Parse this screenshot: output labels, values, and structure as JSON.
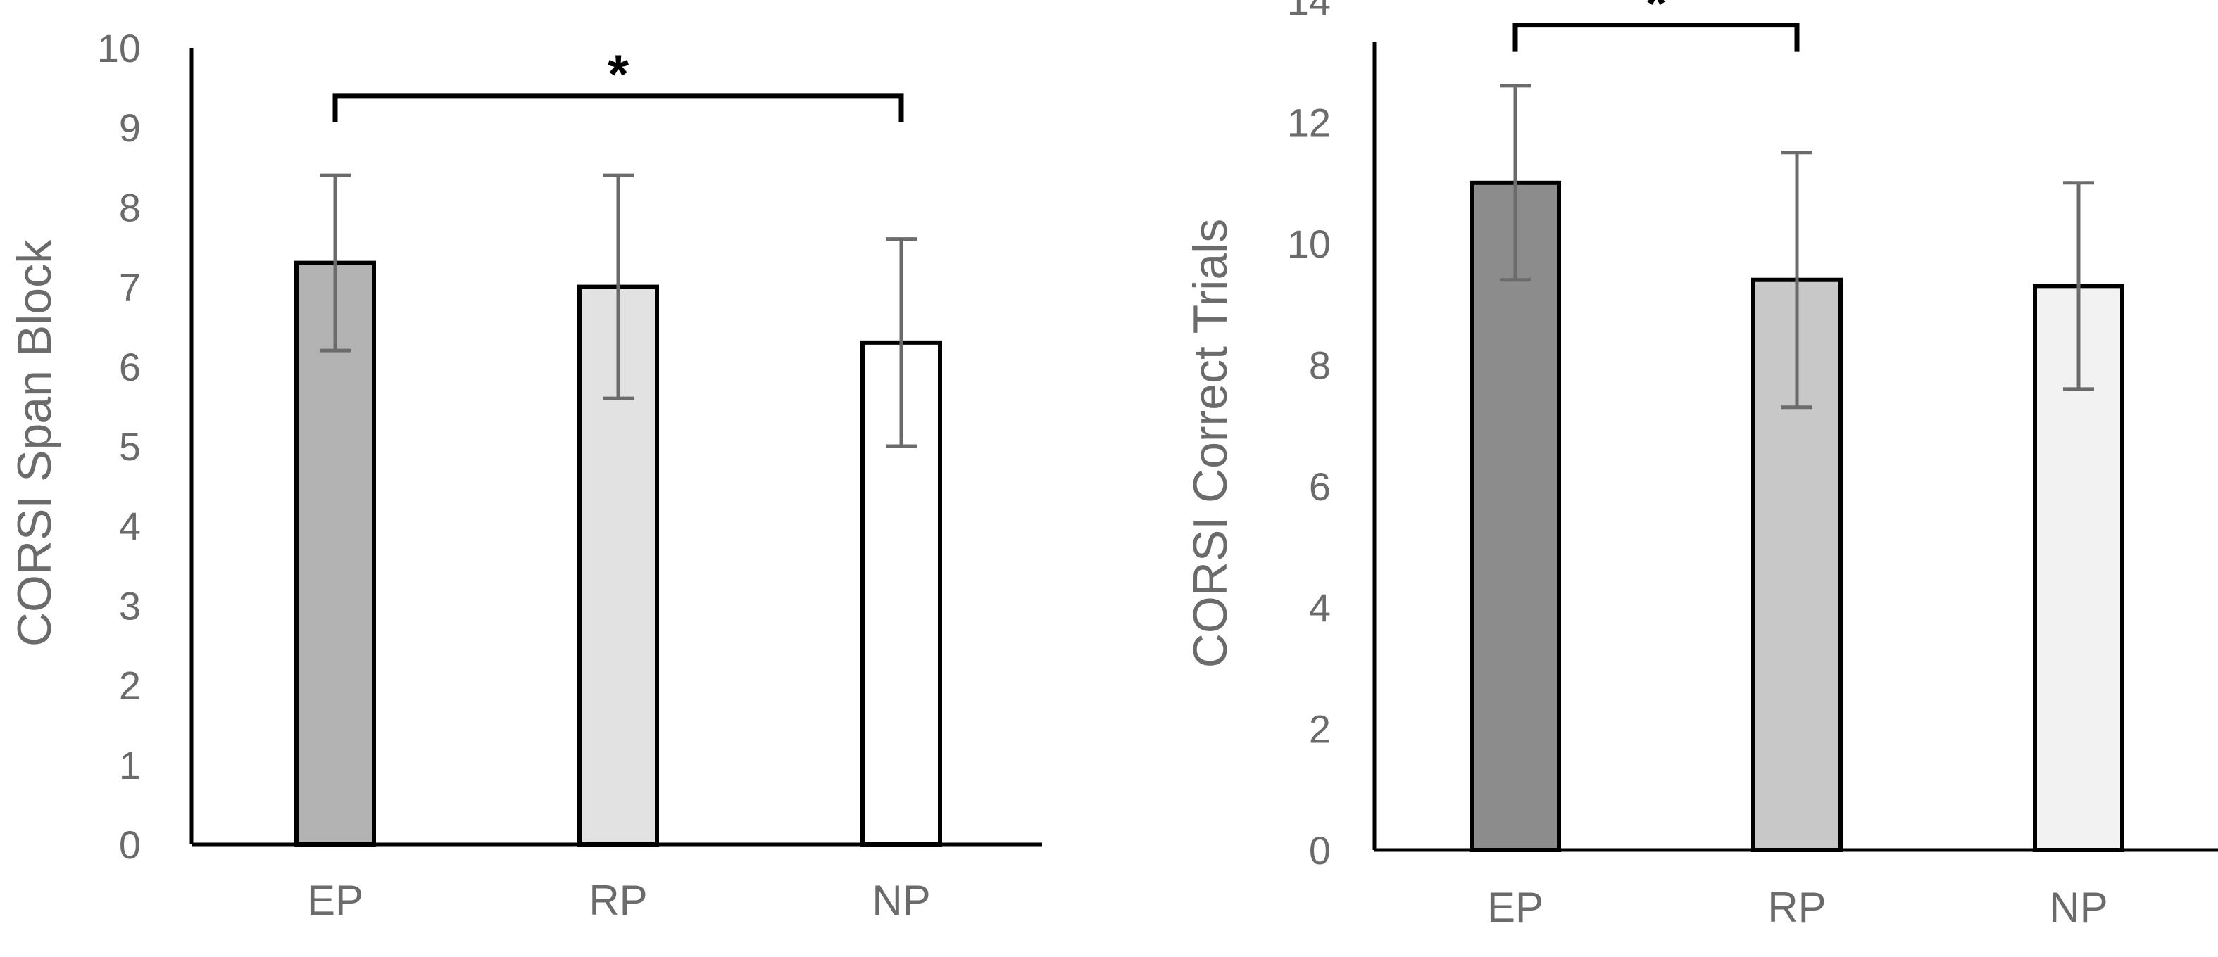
{
  "chart_data": [
    {
      "type": "bar",
      "title": "",
      "xlabel": "",
      "ylabel": "CORSI Span Block",
      "categories": [
        "EP",
        "RP",
        "NP"
      ],
      "values": [
        7.3,
        7.0,
        6.3
      ],
      "error": [
        1.1,
        1.4,
        1.3
      ],
      "colors": [
        "#b3b3b3",
        "#e2e2e2",
        "#ffffff"
      ],
      "ylim": [
        0,
        10
      ],
      "yticks": [
        0,
        1,
        2,
        3,
        4,
        5,
        6,
        7,
        8,
        9,
        10
      ],
      "grid": false,
      "significance": [
        {
          "from": "EP",
          "to": "NP",
          "label": "*",
          "y": 9.4
        }
      ]
    },
    {
      "type": "bar",
      "title": "",
      "xlabel": "",
      "ylabel": "CORSI Correct Trials",
      "categories": [
        "EP",
        "RP",
        "NP"
      ],
      "values": [
        11.0,
        9.4,
        9.3
      ],
      "error": [
        1.6,
        2.1,
        1.7
      ],
      "colors": [
        "#8c8c8c",
        "#c8c8c8",
        "#f2f2f2"
      ],
      "ylim": [
        0,
        15
      ],
      "yticks": [
        0,
        2,
        4,
        6,
        8,
        10,
        12,
        14
      ],
      "grid": false,
      "significance": [
        {
          "from": "EP",
          "to": "RP",
          "label": "*",
          "y": 13.6
        },
        {
          "from": "EP",
          "to": "NP",
          "label": "* *",
          "y": 14.6
        }
      ]
    }
  ]
}
